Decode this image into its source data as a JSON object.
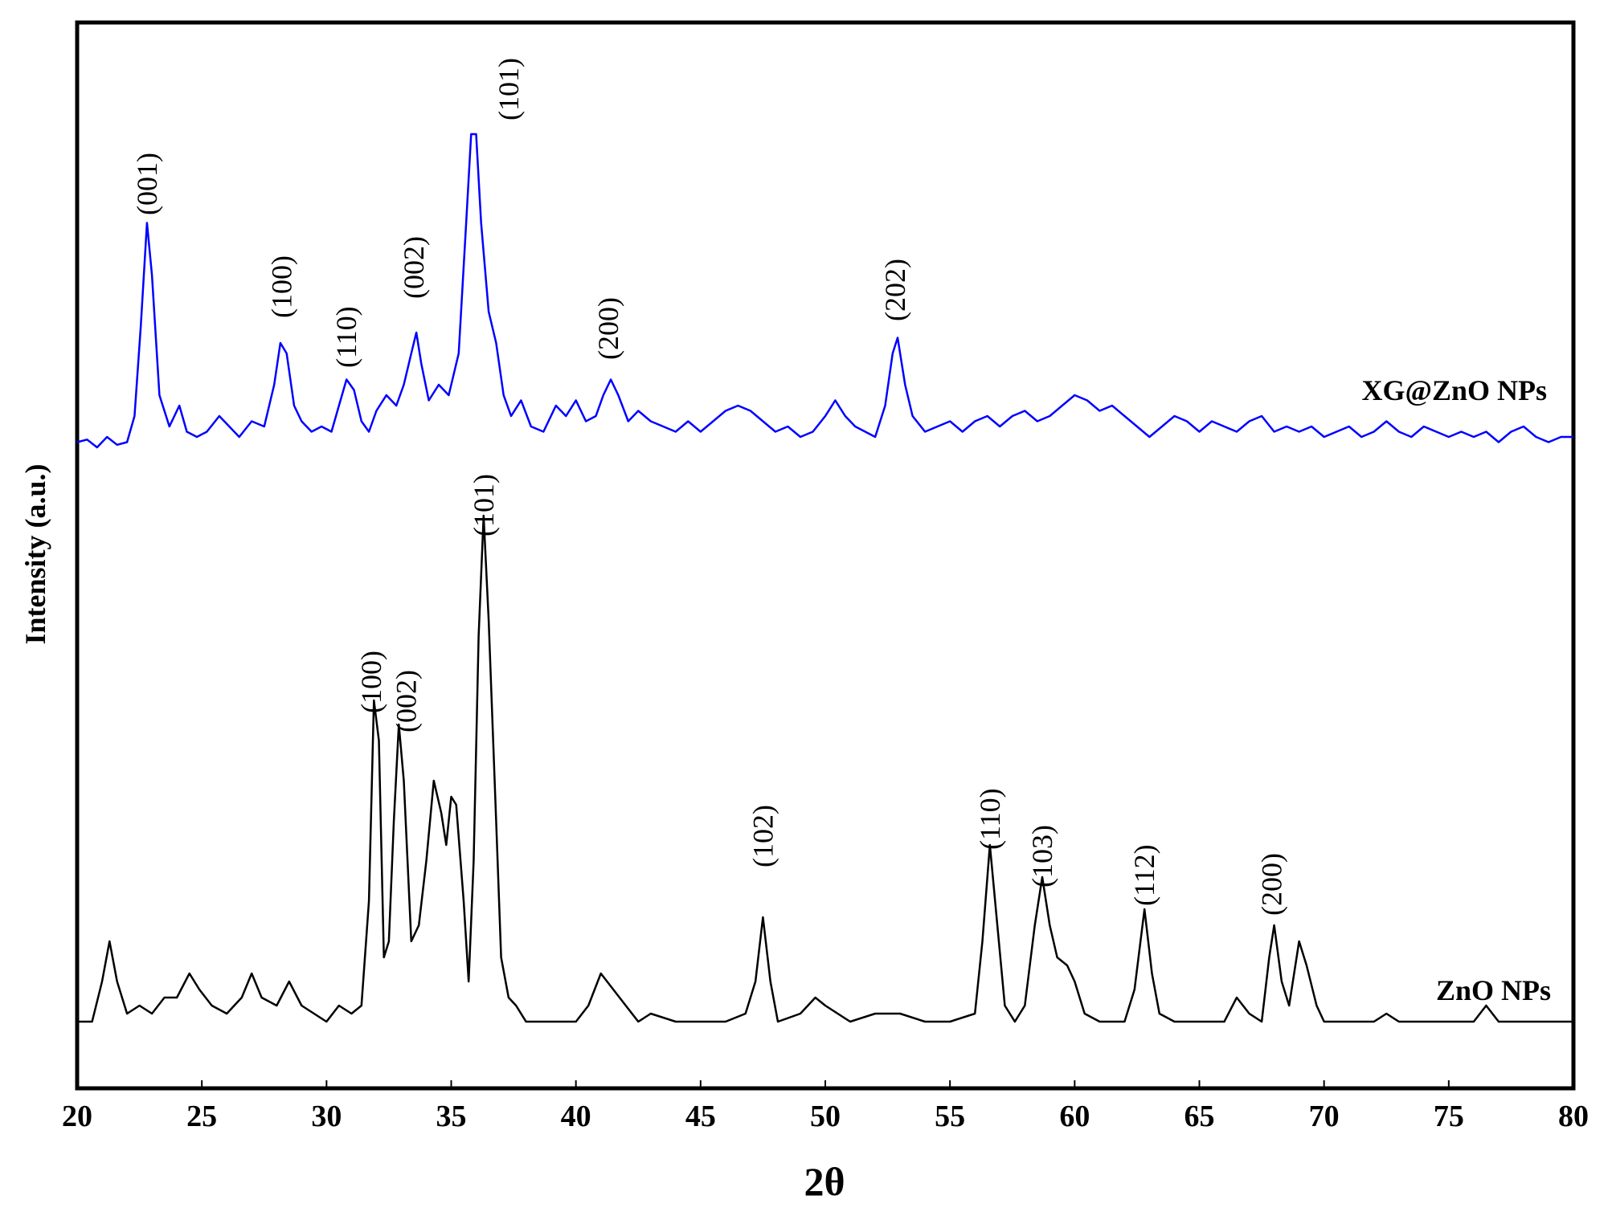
{
  "chart_data": {
    "type": "line",
    "xlabel": "2θ",
    "ylabel": "Intensity (a.u.)",
    "xlim": [
      20,
      80
    ],
    "xticks": [
      20,
      25,
      30,
      35,
      40,
      45,
      50,
      55,
      60,
      65,
      70,
      75,
      80
    ],
    "y_ticks_shown": false,
    "grid": false,
    "legend": "series names printed inline at right of each trace",
    "series": [
      {
        "name": "XG@ZnO NPs",
        "color": "#0000ff",
        "baseline": 0.03,
        "points": [
          [
            20,
            0.03
          ],
          [
            20.4,
            0.035
          ],
          [
            20.8,
            0.02
          ],
          [
            21.2,
            0.04
          ],
          [
            21.6,
            0.025
          ],
          [
            22,
            0.03
          ],
          [
            22.3,
            0.08
          ],
          [
            22.55,
            0.25
          ],
          [
            22.8,
            0.45
          ],
          [
            23.0,
            0.35
          ],
          [
            23.3,
            0.12
          ],
          [
            23.7,
            0.06
          ],
          [
            24.1,
            0.1
          ],
          [
            24.4,
            0.05
          ],
          [
            24.8,
            0.04
          ],
          [
            25.2,
            0.05
          ],
          [
            25.7,
            0.08
          ],
          [
            26.1,
            0.06
          ],
          [
            26.5,
            0.04
          ],
          [
            27,
            0.07
          ],
          [
            27.5,
            0.06
          ],
          [
            27.9,
            0.14
          ],
          [
            28.15,
            0.22
          ],
          [
            28.4,
            0.2
          ],
          [
            28.7,
            0.1
          ],
          [
            29,
            0.07
          ],
          [
            29.4,
            0.05
          ],
          [
            29.8,
            0.06
          ],
          [
            30.2,
            0.05
          ],
          [
            30.5,
            0.1
          ],
          [
            30.8,
            0.15
          ],
          [
            31.1,
            0.13
          ],
          [
            31.4,
            0.07
          ],
          [
            31.7,
            0.05
          ],
          [
            32,
            0.09
          ],
          [
            32.4,
            0.12
          ],
          [
            32.8,
            0.1
          ],
          [
            33.1,
            0.14
          ],
          [
            33.4,
            0.2
          ],
          [
            33.6,
            0.24
          ],
          [
            33.8,
            0.18
          ],
          [
            34.1,
            0.11
          ],
          [
            34.5,
            0.14
          ],
          [
            34.9,
            0.12
          ],
          [
            35.3,
            0.2
          ],
          [
            35.6,
            0.45
          ],
          [
            35.8,
            0.62
          ],
          [
            36.0,
            0.62
          ],
          [
            36.2,
            0.45
          ],
          [
            36.5,
            0.28
          ],
          [
            36.8,
            0.22
          ],
          [
            37.1,
            0.12
          ],
          [
            37.4,
            0.08
          ],
          [
            37.8,
            0.11
          ],
          [
            38.2,
            0.06
          ],
          [
            38.7,
            0.05
          ],
          [
            39.2,
            0.1
          ],
          [
            39.6,
            0.08
          ],
          [
            40,
            0.11
          ],
          [
            40.4,
            0.07
          ],
          [
            40.8,
            0.08
          ],
          [
            41.1,
            0.12
          ],
          [
            41.4,
            0.15
          ],
          [
            41.7,
            0.12
          ],
          [
            42.1,
            0.07
          ],
          [
            42.5,
            0.09
          ],
          [
            43,
            0.07
          ],
          [
            43.5,
            0.06
          ],
          [
            44,
            0.05
          ],
          [
            44.5,
            0.07
          ],
          [
            45,
            0.05
          ],
          [
            45.5,
            0.07
          ],
          [
            46,
            0.09
          ],
          [
            46.5,
            0.1
          ],
          [
            47,
            0.09
          ],
          [
            47.5,
            0.07
          ],
          [
            48,
            0.05
          ],
          [
            48.5,
            0.06
          ],
          [
            49,
            0.04
          ],
          [
            49.5,
            0.05
          ],
          [
            50,
            0.08
          ],
          [
            50.4,
            0.11
          ],
          [
            50.8,
            0.08
          ],
          [
            51.2,
            0.06
          ],
          [
            51.6,
            0.05
          ],
          [
            52,
            0.04
          ],
          [
            52.4,
            0.1
          ],
          [
            52.7,
            0.2
          ],
          [
            52.9,
            0.23
          ],
          [
            53.2,
            0.14
          ],
          [
            53.5,
            0.08
          ],
          [
            54,
            0.05
          ],
          [
            54.5,
            0.06
          ],
          [
            55,
            0.07
          ],
          [
            55.5,
            0.05
          ],
          [
            56,
            0.07
          ],
          [
            56.5,
            0.08
          ],
          [
            57,
            0.06
          ],
          [
            57.5,
            0.08
          ],
          [
            58,
            0.09
          ],
          [
            58.5,
            0.07
          ],
          [
            59,
            0.08
          ],
          [
            59.5,
            0.1
          ],
          [
            60,
            0.12
          ],
          [
            60.5,
            0.11
          ],
          [
            61,
            0.09
          ],
          [
            61.5,
            0.1
          ],
          [
            62,
            0.08
          ],
          [
            62.5,
            0.06
          ],
          [
            63,
            0.04
          ],
          [
            63.5,
            0.06
          ],
          [
            64,
            0.08
          ],
          [
            64.5,
            0.07
          ],
          [
            65,
            0.05
          ],
          [
            65.5,
            0.07
          ],
          [
            66,
            0.06
          ],
          [
            66.5,
            0.05
          ],
          [
            67,
            0.07
          ],
          [
            67.5,
            0.08
          ],
          [
            68,
            0.05
          ],
          [
            68.5,
            0.06
          ],
          [
            69,
            0.05
          ],
          [
            69.5,
            0.06
          ],
          [
            70,
            0.04
          ],
          [
            70.5,
            0.05
          ],
          [
            71,
            0.06
          ],
          [
            71.5,
            0.04
          ],
          [
            72,
            0.05
          ],
          [
            72.5,
            0.07
          ],
          [
            73,
            0.05
          ],
          [
            73.5,
            0.04
          ],
          [
            74,
            0.06
          ],
          [
            74.5,
            0.05
          ],
          [
            75,
            0.04
          ],
          [
            75.5,
            0.05
          ],
          [
            76,
            0.04
          ],
          [
            76.5,
            0.05
          ],
          [
            77,
            0.03
          ],
          [
            77.5,
            0.05
          ],
          [
            78,
            0.06
          ],
          [
            78.5,
            0.04
          ],
          [
            79,
            0.03
          ],
          [
            79.5,
            0.04
          ],
          [
            80,
            0.04
          ]
        ]
      },
      {
        "name": "ZnO NPs",
        "color": "#000000",
        "baseline": 0.0,
        "points": [
          [
            20,
            0
          ],
          [
            20.6,
            0
          ],
          [
            21.0,
            0.05
          ],
          [
            21.3,
            0.1
          ],
          [
            21.6,
            0.05
          ],
          [
            22,
            0.01
          ],
          [
            22.5,
            0.02
          ],
          [
            23,
            0.01
          ],
          [
            23.5,
            0.03
          ],
          [
            24,
            0.03
          ],
          [
            24.5,
            0.06
          ],
          [
            24.9,
            0.04
          ],
          [
            25.4,
            0.02
          ],
          [
            26,
            0.01
          ],
          [
            26.6,
            0.03
          ],
          [
            27.0,
            0.06
          ],
          [
            27.4,
            0.03
          ],
          [
            28,
            0.02
          ],
          [
            28.5,
            0.05
          ],
          [
            29,
            0.02
          ],
          [
            29.5,
            0.01
          ],
          [
            30,
            0.0
          ],
          [
            30.5,
            0.02
          ],
          [
            31,
            0.01
          ],
          [
            31.4,
            0.02
          ],
          [
            31.7,
            0.15
          ],
          [
            31.9,
            0.4
          ],
          [
            32.1,
            0.35
          ],
          [
            32.3,
            0.08
          ],
          [
            32.5,
            0.1
          ],
          [
            32.7,
            0.25
          ],
          [
            32.9,
            0.37
          ],
          [
            33.1,
            0.3
          ],
          [
            33.4,
            0.1
          ],
          [
            33.7,
            0.12
          ],
          [
            34.0,
            0.2
          ],
          [
            34.3,
            0.3
          ],
          [
            34.6,
            0.26
          ],
          [
            34.8,
            0.22
          ],
          [
            35.0,
            0.28
          ],
          [
            35.2,
            0.27
          ],
          [
            35.5,
            0.15
          ],
          [
            35.7,
            0.05
          ],
          [
            35.9,
            0.2
          ],
          [
            36.1,
            0.48
          ],
          [
            36.3,
            0.63
          ],
          [
            36.5,
            0.5
          ],
          [
            36.8,
            0.25
          ],
          [
            37.0,
            0.08
          ],
          [
            37.3,
            0.03
          ],
          [
            37.6,
            0.02
          ],
          [
            38,
            0.0
          ],
          [
            39,
            0.0
          ],
          [
            40,
            0.0
          ],
          [
            40.5,
            0.02
          ],
          [
            41,
            0.06
          ],
          [
            41.5,
            0.04
          ],
          [
            42,
            0.02
          ],
          [
            42.5,
            0.0
          ],
          [
            43,
            0.01
          ],
          [
            44,
            0.0
          ],
          [
            45,
            0.0
          ],
          [
            46,
            0.0
          ],
          [
            46.8,
            0.01
          ],
          [
            47.2,
            0.05
          ],
          [
            47.5,
            0.13
          ],
          [
            47.8,
            0.05
          ],
          [
            48.1,
            0.0
          ],
          [
            49,
            0.01
          ],
          [
            49.6,
            0.03
          ],
          [
            50,
            0.02
          ],
          [
            51,
            0.0
          ],
          [
            52,
            0.01
          ],
          [
            53,
            0.01
          ],
          [
            54,
            0.0
          ],
          [
            55,
            0.0
          ],
          [
            56,
            0.01
          ],
          [
            56.3,
            0.1
          ],
          [
            56.6,
            0.22
          ],
          [
            56.9,
            0.12
          ],
          [
            57.2,
            0.02
          ],
          [
            57.6,
            0.0
          ],
          [
            58,
            0.02
          ],
          [
            58.4,
            0.12
          ],
          [
            58.7,
            0.18
          ],
          [
            59,
            0.12
          ],
          [
            59.3,
            0.08
          ],
          [
            59.7,
            0.07
          ],
          [
            60,
            0.05
          ],
          [
            60.4,
            0.01
          ],
          [
            61,
            0.0
          ],
          [
            62,
            0.0
          ],
          [
            62.4,
            0.04
          ],
          [
            62.8,
            0.14
          ],
          [
            63.1,
            0.06
          ],
          [
            63.4,
            0.01
          ],
          [
            64,
            0.0
          ],
          [
            65,
            0.0
          ],
          [
            66,
            0.0
          ],
          [
            66.5,
            0.03
          ],
          [
            67,
            0.01
          ],
          [
            67.5,
            0.0
          ],
          [
            67.8,
            0.08
          ],
          [
            68.0,
            0.12
          ],
          [
            68.3,
            0.05
          ],
          [
            68.6,
            0.02
          ],
          [
            69.0,
            0.1
          ],
          [
            69.3,
            0.07
          ],
          [
            69.7,
            0.02
          ],
          [
            70,
            0.0
          ],
          [
            71,
            0.0
          ],
          [
            72,
            0.0
          ],
          [
            72.5,
            0.01
          ],
          [
            73,
            0.0
          ],
          [
            74,
            0.0
          ],
          [
            75,
            0.0
          ],
          [
            76,
            0.0
          ],
          [
            76.5,
            0.02
          ],
          [
            77,
            0.0
          ],
          [
            78,
            0.0
          ],
          [
            79,
            0.0
          ],
          [
            80,
            0.0
          ]
        ]
      }
    ],
    "annotations": [
      {
        "series": "XG@ZnO NPs",
        "text": "(001)",
        "x": 22.8
      },
      {
        "series": "XG@ZnO NPs",
        "text": "(100)",
        "x": 28.2
      },
      {
        "series": "XG@ZnO NPs",
        "text": "(110)",
        "x": 30.8
      },
      {
        "series": "XG@ZnO NPs",
        "text": "(002)",
        "x": 33.5
      },
      {
        "series": "XG@ZnO NPs",
        "text": "(101)",
        "x": 37.3
      },
      {
        "series": "XG@ZnO NPs",
        "text": "(200)",
        "x": 41.3
      },
      {
        "series": "XG@ZnO NPs",
        "text": "(202)",
        "x": 52.8
      },
      {
        "series": "ZnO NPs",
        "text": "(100)",
        "x": 31.8
      },
      {
        "series": "ZnO NPs",
        "text": "(002)",
        "x": 33.2
      },
      {
        "series": "ZnO NPs",
        "text": "(101)",
        "x": 36.3
      },
      {
        "series": "ZnO NPs",
        "text": "(102)",
        "x": 47.5
      },
      {
        "series": "ZnO NPs",
        "text": "(110)",
        "x": 56.6
      },
      {
        "series": "ZnO NPs",
        "text": "(103)",
        "x": 58.7
      },
      {
        "series": "ZnO NPs",
        "text": "(112)",
        "x": 62.8
      },
      {
        "series": "ZnO NPs",
        "text": "(200)",
        "x": 67.9
      }
    ]
  }
}
